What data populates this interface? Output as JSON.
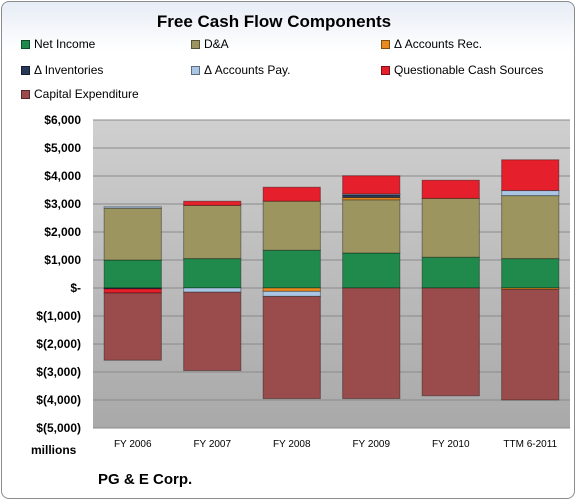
{
  "chart_data": {
    "type": "bar",
    "stacked": true,
    "title": "Free Cash Flow Components",
    "categories": [
      "FY 2006",
      "FY 2007",
      "FY 2008",
      "FY 2009",
      "FY 2010",
      "TTM 6-2011"
    ],
    "ylim": [
      -5000,
      6000
    ],
    "yticks": [
      6000,
      5000,
      4000,
      3000,
      2000,
      1000,
      0,
      -1000,
      -2000,
      -3000,
      -4000,
      -5000
    ],
    "ytick_labels": [
      "$6,000",
      "$5,000",
      "$4,000",
      "$3,000",
      "$2,000",
      "$1,000",
      "$-",
      "$(1,000)",
      "$(2,000)",
      "$(3,000)",
      "$(4,000)",
      "$(5,000)"
    ],
    "ylabel_units": "millions",
    "legend_position": "top",
    "series": [
      {
        "name": "Net Income",
        "color": "#1f8a4c",
        "values": [
          1000,
          1050,
          1350,
          1250,
          1100,
          1050
        ]
      },
      {
        "name": "D&A",
        "color": "#9c9560",
        "values": [
          1850,
          1900,
          1750,
          1900,
          2100,
          2250
        ]
      },
      {
        "name": "Δ Accounts Rec.",
        "color": "#e88a1f",
        "values": [
          0,
          0,
          -120,
          80,
          0,
          -50
        ]
      },
      {
        "name": "Δ Inventories",
        "color": "#283a58",
        "values": [
          -30,
          0,
          0,
          100,
          0,
          0
        ]
      },
      {
        "name": "Δ Accounts Pay.",
        "color": "#a9c6e5",
        "values": [
          50,
          -150,
          -180,
          30,
          0,
          180
        ]
      },
      {
        "name": "Questionable Cash Sources",
        "color": "#e51f2b",
        "values": [
          -150,
          150,
          500,
          650,
          650,
          1100
        ]
      },
      {
        "name": "Capital Expenditure",
        "color": "#9a4c4c",
        "values": [
          -2400,
          -2800,
          -3650,
          -3950,
          -3850,
          -3950
        ]
      }
    ]
  },
  "footer": {
    "units_label": "millions",
    "company": "PG & E Corp."
  }
}
